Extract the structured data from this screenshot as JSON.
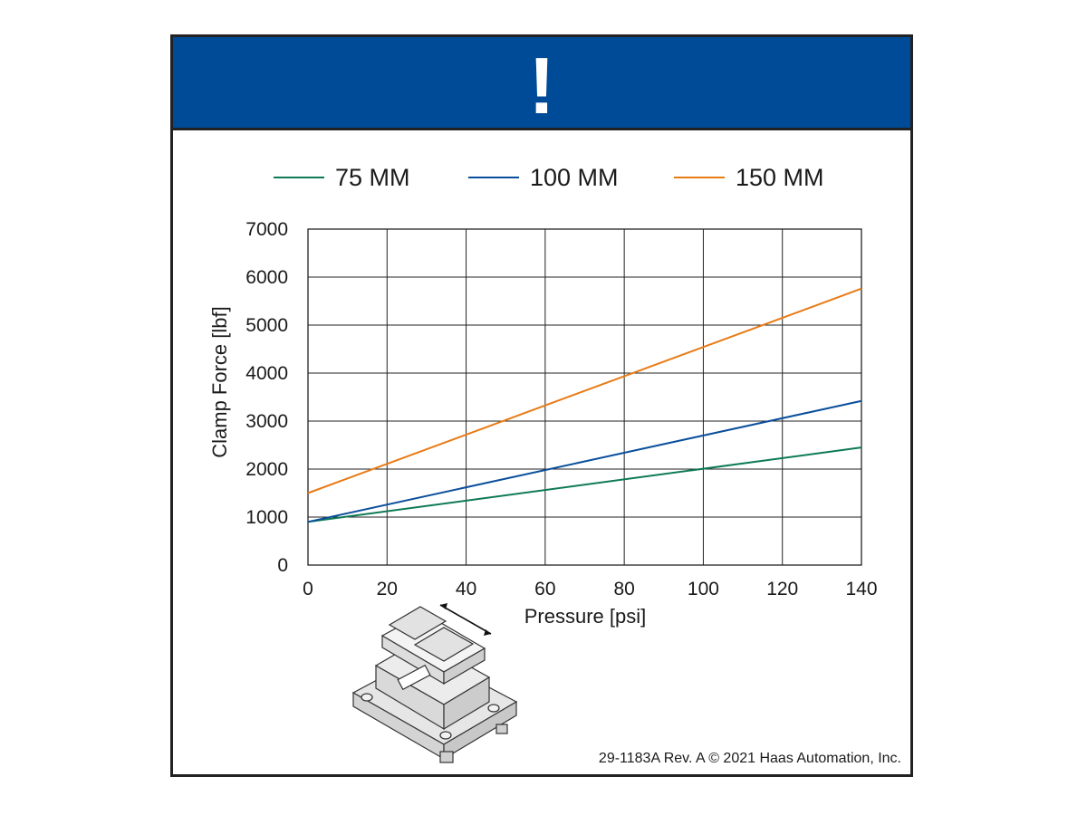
{
  "banner": {
    "symbol": "!",
    "color": "#004b97"
  },
  "footer": {
    "text": "29-1183A Rev. A © 2021 Haas Automation, Inc."
  },
  "product_image": {
    "icon": "vise-fixture-illustration"
  },
  "chart_data": {
    "type": "line",
    "xlabel": "Pressure [psi]",
    "ylabel": "Clamp Force [lbf]",
    "xlim": [
      0,
      140
    ],
    "ylim": [
      0,
      7000
    ],
    "xticks": [
      0,
      20,
      40,
      60,
      80,
      100,
      120,
      140
    ],
    "yticks": [
      0,
      1000,
      2000,
      3000,
      4000,
      5000,
      6000,
      7000
    ],
    "grid": true,
    "legend_position": "top",
    "x": [
      0,
      140
    ],
    "series": [
      {
        "name": "75 MM",
        "color": "#0e7a55",
        "values": [
          900,
          2450
        ]
      },
      {
        "name": "100 MM",
        "color": "#0b4f9c",
        "values": [
          900,
          3420
        ]
      },
      {
        "name": "150 MM",
        "color": "#e87b16",
        "values": [
          1500,
          5760
        ]
      }
    ]
  }
}
